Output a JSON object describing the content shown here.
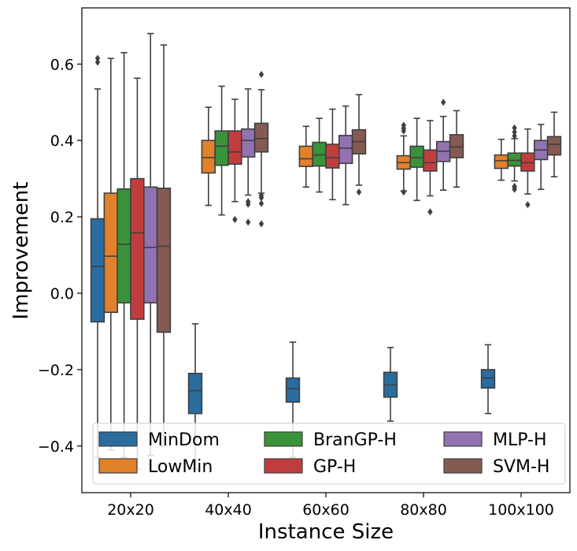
{
  "chart_data": {
    "type": "box",
    "title": "",
    "xlabel": "Instance Size",
    "ylabel": "Improvement",
    "ylim": [
      -0.52,
      0.755
    ],
    "yticks": [
      -0.4,
      -0.2,
      0.0,
      0.2,
      0.4,
      0.6
    ],
    "ytick_labels": [
      "−0.4",
      "−0.2",
      "0.0",
      "0.2",
      "0.4",
      "0.6"
    ],
    "categories": [
      "20x20",
      "40x40",
      "60x60",
      "80x80",
      "100x100"
    ],
    "legend": {
      "placement": "lower-center",
      "columns": 3
    },
    "series": [
      {
        "name": "MinDom",
        "color": "#2b6c9f",
        "boxes": [
          {
            "whislo": -0.43,
            "q1": -0.075,
            "med": 0.07,
            "q3": 0.195,
            "whishi": 0.535,
            "fliers": [
              0.605,
              0.615
            ]
          },
          {
            "whislo": -0.46,
            "q1": -0.315,
            "med": -0.255,
            "q3": -0.21,
            "whishi": -0.08,
            "fliers": []
          },
          {
            "whislo": -0.43,
            "q1": -0.285,
            "med": -0.25,
            "q3": -0.222,
            "whishi": -0.128,
            "fliers": []
          },
          {
            "whislo": -0.335,
            "q1": -0.272,
            "med": -0.24,
            "q3": -0.207,
            "whishi": -0.142,
            "fliers": []
          },
          {
            "whislo": -0.315,
            "q1": -0.248,
            "med": -0.222,
            "q3": -0.2,
            "whishi": -0.135,
            "fliers": []
          }
        ]
      },
      {
        "name": "LowMin",
        "color": "#e1812c",
        "boxes": [
          {
            "whislo": -0.41,
            "q1": -0.05,
            "med": 0.097,
            "q3": 0.262,
            "whishi": 0.615,
            "fliers": []
          },
          {
            "whislo": 0.23,
            "q1": 0.315,
            "med": 0.355,
            "q3": 0.4,
            "whishi": 0.487,
            "fliers": []
          },
          {
            "whislo": 0.278,
            "q1": 0.332,
            "med": 0.352,
            "q3": 0.385,
            "whishi": 0.437,
            "fliers": []
          },
          {
            "whislo": 0.268,
            "q1": 0.325,
            "med": 0.342,
            "q3": 0.36,
            "whishi": 0.412,
            "fliers": [
              0.265,
              0.425,
              0.432,
              0.44
            ]
          },
          {
            "whislo": 0.296,
            "q1": 0.327,
            "med": 0.347,
            "q3": 0.362,
            "whishi": 0.403,
            "fliers": []
          }
        ]
      },
      {
        "name": "BranGP-H",
        "color": "#3a923a",
        "boxes": [
          {
            "whislo": -0.43,
            "q1": -0.025,
            "med": 0.128,
            "q3": 0.273,
            "whishi": 0.63,
            "fliers": []
          },
          {
            "whislo": 0.205,
            "q1": 0.335,
            "med": 0.385,
            "q3": 0.425,
            "whishi": 0.542,
            "fliers": []
          },
          {
            "whislo": 0.265,
            "q1": 0.333,
            "med": 0.362,
            "q3": 0.395,
            "whishi": 0.458,
            "fliers": []
          },
          {
            "whislo": 0.243,
            "q1": 0.33,
            "med": 0.355,
            "q3": 0.385,
            "whishi": 0.458,
            "fliers": []
          },
          {
            "whislo": 0.294,
            "q1": 0.333,
            "med": 0.348,
            "q3": 0.367,
            "whishi": 0.405,
            "fliers": [
              0.272,
              0.278,
              0.28,
              0.412,
              0.422,
              0.433
            ]
          }
        ]
      },
      {
        "name": "GP-H",
        "color": "#c03d3e",
        "boxes": [
          {
            "whislo": -0.46,
            "q1": -0.068,
            "med": 0.158,
            "q3": 0.3,
            "whishi": 0.563,
            "fliers": []
          },
          {
            "whislo": 0.24,
            "q1": 0.338,
            "med": 0.37,
            "q3": 0.425,
            "whishi": 0.508,
            "fliers": [
              0.193
            ]
          },
          {
            "whislo": 0.245,
            "q1": 0.328,
            "med": 0.355,
            "q3": 0.39,
            "whishi": 0.482,
            "fliers": []
          },
          {
            "whislo": 0.255,
            "q1": 0.32,
            "med": 0.342,
            "q3": 0.375,
            "whishi": 0.452,
            "fliers": [
              0.213
            ]
          },
          {
            "whislo": 0.26,
            "q1": 0.32,
            "med": 0.342,
            "q3": 0.367,
            "whishi": 0.43,
            "fliers": [
              0.232
            ]
          }
        ]
      },
      {
        "name": "MLP-H",
        "color": "#9372b2",
        "boxes": [
          {
            "whislo": -0.425,
            "q1": -0.025,
            "med": 0.12,
            "q3": 0.278,
            "whishi": 0.68,
            "fliers": []
          },
          {
            "whislo": 0.257,
            "q1": 0.357,
            "med": 0.4,
            "q3": 0.43,
            "whishi": 0.535,
            "fliers": [
              0.186,
              0.233,
              0.24
            ]
          },
          {
            "whislo": 0.232,
            "q1": 0.34,
            "med": 0.38,
            "q3": 0.413,
            "whishi": 0.49,
            "fliers": []
          },
          {
            "whislo": 0.27,
            "q1": 0.345,
            "med": 0.372,
            "q3": 0.397,
            "whishi": 0.463,
            "fliers": [
              0.5
            ]
          },
          {
            "whislo": 0.272,
            "q1": 0.35,
            "med": 0.375,
            "q3": 0.4,
            "whishi": 0.442,
            "fliers": []
          }
        ]
      },
      {
        "name": "SVM-H",
        "color": "#845b53",
        "boxes": [
          {
            "whislo": -0.4,
            "q1": -0.102,
            "med": 0.123,
            "q3": 0.275,
            "whishi": 0.65,
            "fliers": []
          },
          {
            "whislo": 0.262,
            "q1": 0.37,
            "med": 0.405,
            "q3": 0.445,
            "whishi": 0.533,
            "fliers": [
              0.182,
              0.235,
              0.25,
              0.256,
              0.573
            ]
          },
          {
            "whislo": 0.283,
            "q1": 0.365,
            "med": 0.397,
            "q3": 0.428,
            "whishi": 0.52,
            "fliers": [
              0.265
            ]
          },
          {
            "whislo": 0.278,
            "q1": 0.355,
            "med": 0.383,
            "q3": 0.415,
            "whishi": 0.478,
            "fliers": []
          },
          {
            "whislo": 0.305,
            "q1": 0.362,
            "med": 0.39,
            "q3": 0.41,
            "whishi": 0.474,
            "fliers": []
          }
        ]
      }
    ]
  }
}
